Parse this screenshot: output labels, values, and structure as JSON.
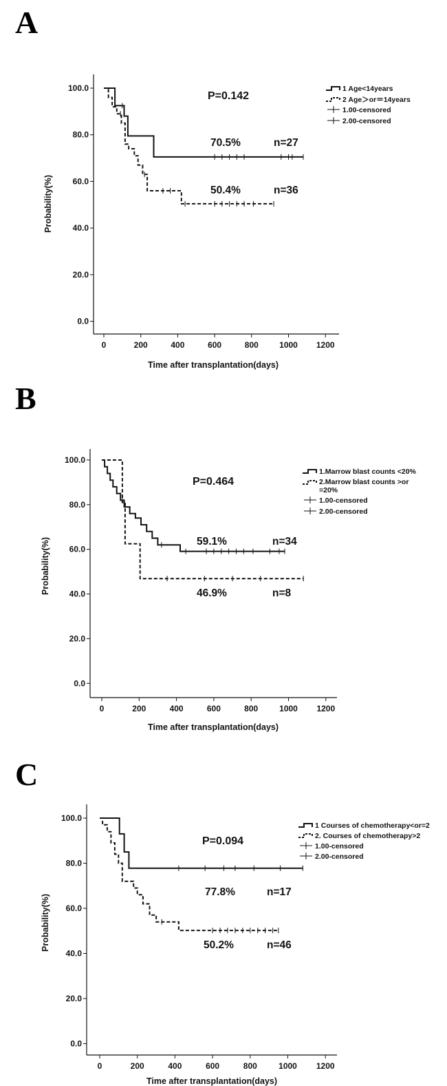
{
  "chart_data": [
    {
      "panel": "A",
      "type": "line",
      "subtype": "kaplan-meier",
      "xlabel": "Time after transplantation(days)",
      "ylabel": "Probability(%)",
      "xlim": [
        -50,
        1250
      ],
      "ylim": [
        -5,
        105
      ],
      "xticks": [
        "0",
        "200",
        "400",
        "600",
        "800",
        "1000",
        "1200"
      ],
      "yticks": [
        "0.0",
        "20.0",
        "40.0",
        "60.0",
        "80.0",
        "100.0"
      ],
      "pvalue": "P=0.142",
      "legend": [
        "1 Age<14years",
        "2 Age＞or＝14years",
        "1.00-censored",
        "2.00-censored"
      ],
      "series": [
        {
          "name": "1 Age<14years",
          "style": "solid",
          "steps": [
            [
              0,
              100
            ],
            [
              60,
              100
            ],
            [
              60,
              92.5
            ],
            [
              110,
              92.5
            ],
            [
              110,
              88
            ],
            [
              130,
              88
            ],
            [
              130,
              79.5
            ],
            [
              270,
              79.5
            ],
            [
              270,
              70.5
            ],
            [
              1080,
              70.5
            ]
          ],
          "censored": [
            100,
            600,
            640,
            680,
            720,
            760,
            960,
            1000,
            1020,
            1080
          ],
          "annotation_value": "70.5%",
          "annotation_n": "n=27"
        },
        {
          "name": "2 Age＞or＝14years",
          "style": "dashed",
          "steps": [
            [
              0,
              100
            ],
            [
              25,
              100
            ],
            [
              25,
              96
            ],
            [
              45,
              96
            ],
            [
              45,
              92
            ],
            [
              70,
              92
            ],
            [
              70,
              89
            ],
            [
              95,
              89
            ],
            [
              95,
              85
            ],
            [
              115,
              85
            ],
            [
              115,
              76
            ],
            [
              135,
              76
            ],
            [
              135,
              74
            ],
            [
              165,
              74
            ],
            [
              165,
              71
            ],
            [
              185,
              71
            ],
            [
              185,
              67
            ],
            [
              210,
              67
            ],
            [
              210,
              63
            ],
            [
              235,
              63
            ],
            [
              235,
              56
            ],
            [
              420,
              56
            ],
            [
              420,
              50.4
            ],
            [
              920,
              50.4
            ]
          ],
          "censored": [
            90,
            220,
            320,
            360,
            440,
            600,
            640,
            680,
            720,
            760,
            810,
            920
          ],
          "annotation_value": "50.4%",
          "annotation_n": "n=36"
        }
      ]
    },
    {
      "panel": "B",
      "type": "line",
      "subtype": "kaplan-meier",
      "xlabel": "Time after transplantation(days)",
      "ylabel": "Probability(%)",
      "xlim": [
        -50,
        1250
      ],
      "ylim": [
        -5,
        105
      ],
      "xticks": [
        "0",
        "200",
        "400",
        "600",
        "800",
        "1000",
        "1200"
      ],
      "yticks": [
        "0.0",
        "20.0",
        "40.0",
        "60.0",
        "80.0",
        "100.0"
      ],
      "pvalue": "P=0.464",
      "legend": [
        "1.Marrow blast counts <20%",
        "2.Marrow blast counts >or",
        "=20%",
        "1.00-censored",
        "2.00-censored"
      ],
      "series": [
        {
          "name": "1.Marrow blast counts <20%",
          "style": "solid",
          "steps": [
            [
              0,
              100
            ],
            [
              15,
              100
            ],
            [
              15,
              97
            ],
            [
              30,
              97
            ],
            [
              30,
              94
            ],
            [
              45,
              94
            ],
            [
              45,
              91
            ],
            [
              60,
              91
            ],
            [
              60,
              88
            ],
            [
              80,
              88
            ],
            [
              80,
              85
            ],
            [
              100,
              85
            ],
            [
              100,
              82
            ],
            [
              120,
              82
            ],
            [
              120,
              79
            ],
            [
              150,
              79
            ],
            [
              150,
              76
            ],
            [
              180,
              76
            ],
            [
              180,
              74
            ],
            [
              210,
              74
            ],
            [
              210,
              71
            ],
            [
              240,
              71
            ],
            [
              240,
              68
            ],
            [
              270,
              68
            ],
            [
              270,
              65
            ],
            [
              300,
              65
            ],
            [
              300,
              62
            ],
            [
              420,
              62
            ],
            [
              420,
              59.1
            ],
            [
              980,
              59.1
            ]
          ],
          "censored": [
            110,
            320,
            450,
            560,
            600,
            640,
            680,
            720,
            760,
            810,
            900,
            950,
            980
          ],
          "annotation_value": "59.1%",
          "annotation_n": "n=34"
        },
        {
          "name": "2.Marrow blast counts >or=20%",
          "style": "dashed",
          "steps": [
            [
              0,
              100
            ],
            [
              110,
              100
            ],
            [
              110,
              81
            ],
            [
              125,
              81
            ],
            [
              125,
              62.5
            ],
            [
              205,
              62.5
            ],
            [
              205,
              46.9
            ],
            [
              1080,
              46.9
            ]
          ],
          "censored": [
            350,
            550,
            700,
            850,
            1080
          ],
          "annotation_value": "46.9%",
          "annotation_n": "n=8"
        }
      ]
    },
    {
      "panel": "C",
      "type": "line",
      "subtype": "kaplan-meier",
      "xlabel": "Time after transplantation(days)",
      "ylabel": "Probability(%)",
      "xlim": [
        -50,
        1250
      ],
      "ylim": [
        -5,
        105
      ],
      "xticks": [
        "0",
        "200",
        "400",
        "600",
        "800",
        "1000",
        "1200"
      ],
      "yticks": [
        "0.0",
        "20.0",
        "40.0",
        "60.0",
        "80.0",
        "100.0"
      ],
      "pvalue": "P=0.094",
      "legend": [
        "1 Courses of chemotherapy<or=2",
        "2. Courses of chemotherapy>2",
        "1.00-censored",
        "2.00-censored"
      ],
      "series": [
        {
          "name": "1 Courses of chemotherapy<or=2",
          "style": "solid",
          "steps": [
            [
              0,
              100
            ],
            [
              105,
              100
            ],
            [
              105,
              93
            ],
            [
              130,
              93
            ],
            [
              130,
              85
            ],
            [
              155,
              85
            ],
            [
              155,
              77.8
            ],
            [
              1080,
              77.8
            ]
          ],
          "censored": [
            420,
            560,
            660,
            720,
            820,
            960,
            1080
          ],
          "annotation_value": "77.8%",
          "annotation_n": "n=17"
        },
        {
          "name": "2. Courses of chemotherapy>2",
          "style": "dashed",
          "steps": [
            [
              0,
              100
            ],
            [
              15,
              100
            ],
            [
              15,
              97
            ],
            [
              40,
              97
            ],
            [
              40,
              94
            ],
            [
              60,
              94
            ],
            [
              60,
              89
            ],
            [
              80,
              89
            ],
            [
              80,
              84
            ],
            [
              100,
              84
            ],
            [
              100,
              80
            ],
            [
              120,
              80
            ],
            [
              120,
              72
            ],
            [
              180,
              72
            ],
            [
              180,
              69
            ],
            [
              200,
              69
            ],
            [
              200,
              66
            ],
            [
              230,
              66
            ],
            [
              230,
              62
            ],
            [
              265,
              62
            ],
            [
              265,
              57
            ],
            [
              300,
              57
            ],
            [
              300,
              54
            ],
            [
              420,
              54
            ],
            [
              420,
              50.2
            ],
            [
              950,
              50.2
            ]
          ],
          "censored": [
            330,
            600,
            640,
            680,
            720,
            760,
            800,
            840,
            880,
            920,
            950
          ],
          "annotation_value": "50.2%",
          "annotation_n": "n=46"
        }
      ]
    }
  ]
}
